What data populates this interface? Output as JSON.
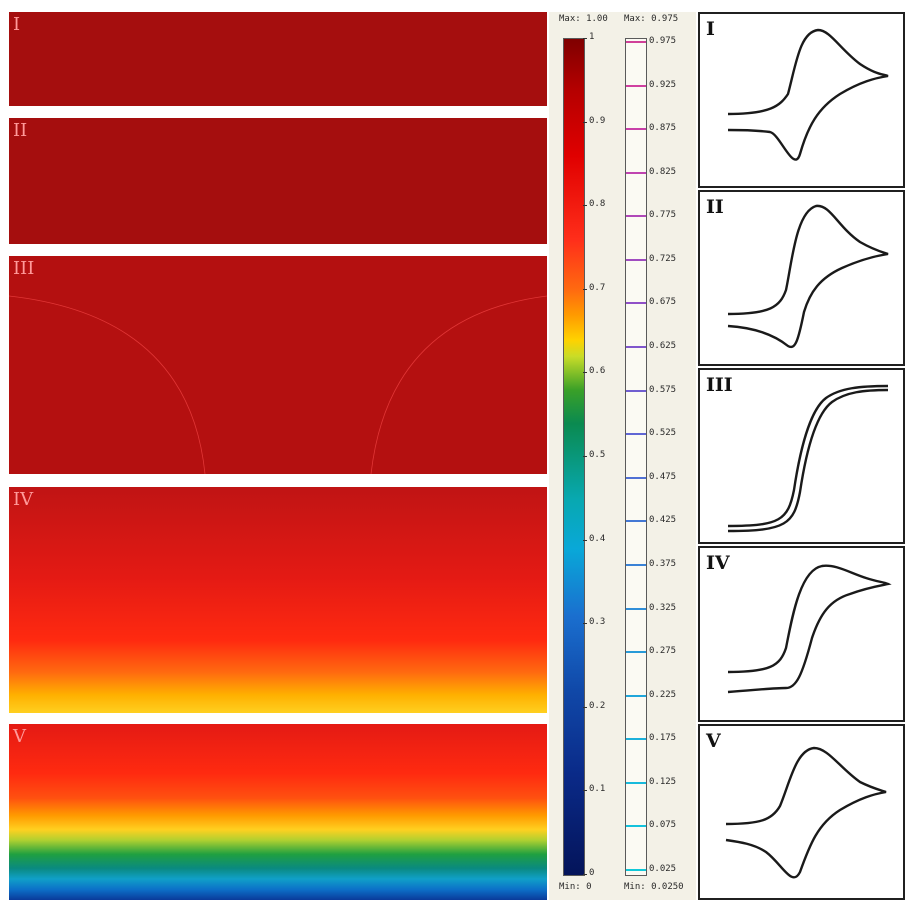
{
  "panels": [
    {
      "label": "I"
    },
    {
      "label": "II"
    },
    {
      "label": "III"
    },
    {
      "label": "IV"
    },
    {
      "label": "V"
    }
  ],
  "legend_main": {
    "max_label": "Max: 1.00",
    "min_label": "Min: 0",
    "ticks": [
      "1",
      "0.9",
      "0.8",
      "0.7",
      "0.6",
      "0.5",
      "0.4",
      "0.3",
      "0.2",
      "0.1",
      "0"
    ]
  },
  "legend_contours": {
    "max_label": "Max: 0.975",
    "min_label": "Min: 0.0250",
    "ticks": [
      "0.975",
      "0.925",
      "0.875",
      "0.825",
      "0.775",
      "0.725",
      "0.675",
      "0.625",
      "0.575",
      "0.525",
      "0.475",
      "0.425",
      "0.375",
      "0.325",
      "0.275",
      "0.225",
      "0.175",
      "0.125",
      "0.075",
      "0.025"
    ]
  },
  "voltammograms": [
    {
      "label": "I"
    },
    {
      "label": "II"
    },
    {
      "label": "III"
    },
    {
      "label": "IV"
    },
    {
      "label": "V"
    }
  ],
  "colors": {
    "panel_bg": "#a50e0e",
    "legend_bg": "#f3f1e7",
    "curve": "#1a1a1a"
  }
}
